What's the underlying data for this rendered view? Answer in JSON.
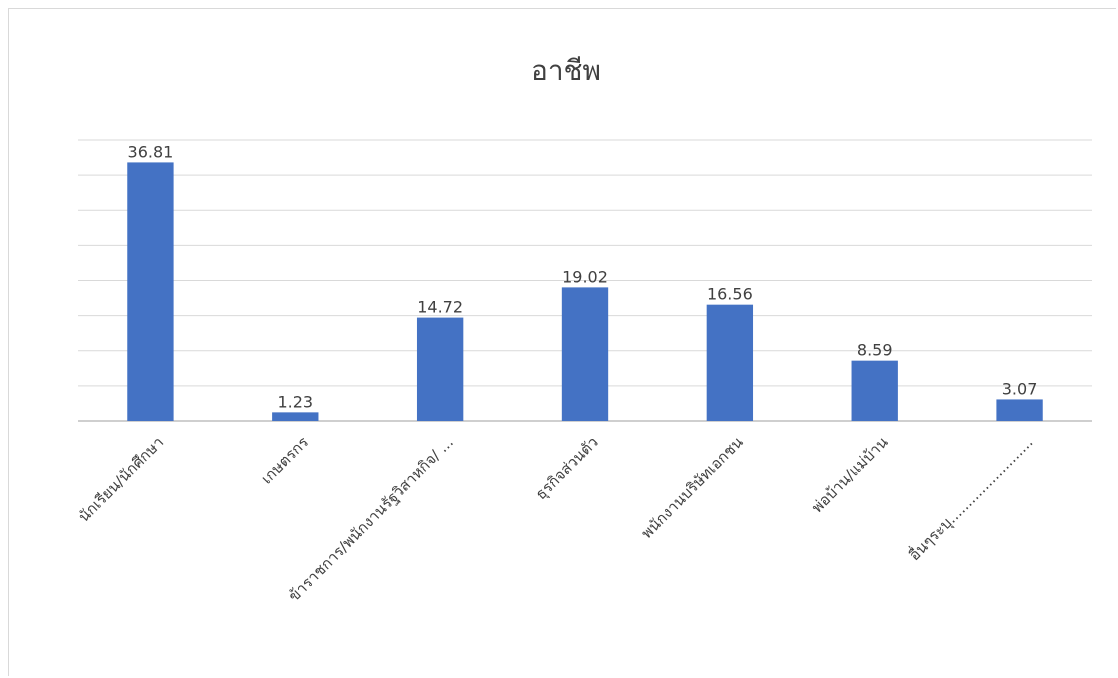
{
  "chart_data": {
    "type": "bar",
    "title": "อาชีพ",
    "xlabel": "",
    "ylabel": "",
    "categories": [
      "นักเรียน/นักศึกษา",
      "เกษตรกร",
      "ข้าราชการ/พนักงานรัฐวิสาหกิจ/ ...",
      "ธุรกิจส่วนตัว",
      "พนักงานบริษัทเอกชน",
      "พ่อบ้าน/แม่บ้าน",
      "อื่นๆระบุ........................"
    ],
    "values": [
      36.81,
      1.23,
      14.72,
      19.02,
      16.56,
      8.59,
      3.07
    ],
    "ylim": [
      0,
      40
    ],
    "grid": true,
    "legend": "none",
    "colors": {
      "bar": "#4472C4",
      "grid": "#d9d9d9",
      "text": "#404040"
    }
  }
}
